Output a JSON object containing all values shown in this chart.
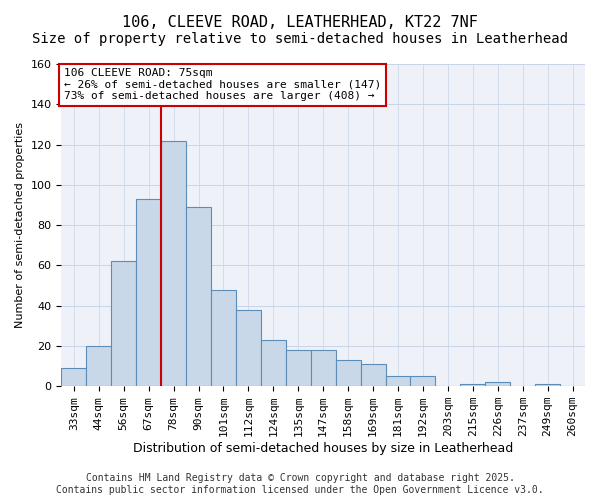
{
  "title_line1": "106, CLEEVE ROAD, LEATHERHEAD, KT22 7NF",
  "title_line2": "Size of property relative to semi-detached houses in Leatherhead",
  "xlabel": "Distribution of semi-detached houses by size in Leatherhead",
  "ylabel": "Number of semi-detached properties",
  "categories": [
    "33sqm",
    "44sqm",
    "56sqm",
    "67sqm",
    "78sqm",
    "90sqm",
    "101sqm",
    "112sqm",
    "124sqm",
    "135sqm",
    "147sqm",
    "158sqm",
    "169sqm",
    "181sqm",
    "192sqm",
    "203sqm",
    "215sqm",
    "226sqm",
    "237sqm",
    "249sqm",
    "260sqm"
  ],
  "values": [
    9,
    20,
    62,
    93,
    122,
    89,
    48,
    38,
    23,
    18,
    18,
    13,
    11,
    5,
    5,
    0,
    1,
    2,
    0,
    1,
    0
  ],
  "bar_color": "#c8d8e8",
  "bar_edge_color": "#5b8db8",
  "vline_x_index": 3.5,
  "vline_color": "#cc0000",
  "annotation_text_line1": "106 CLEEVE ROAD: 75sqm",
  "annotation_text_line2": "← 26% of semi-detached houses are smaller (147)",
  "annotation_text_line3": "73% of semi-detached houses are larger (408) →",
  "annotation_box_color": "#cc0000",
  "ylim": [
    0,
    160
  ],
  "yticks": [
    0,
    20,
    40,
    60,
    80,
    100,
    120,
    140,
    160
  ],
  "grid_color": "#c8d4e8",
  "background_color": "#eef2f8",
  "footer_line1": "Contains HM Land Registry data © Crown copyright and database right 2025.",
  "footer_line2": "Contains public sector information licensed under the Open Government Licence v3.0.",
  "title_fontsize": 11,
  "subtitle_fontsize": 10,
  "ylabel_fontsize": 8,
  "xlabel_fontsize": 9,
  "tick_fontsize": 8,
  "annotation_fontsize": 8,
  "footer_fontsize": 7
}
